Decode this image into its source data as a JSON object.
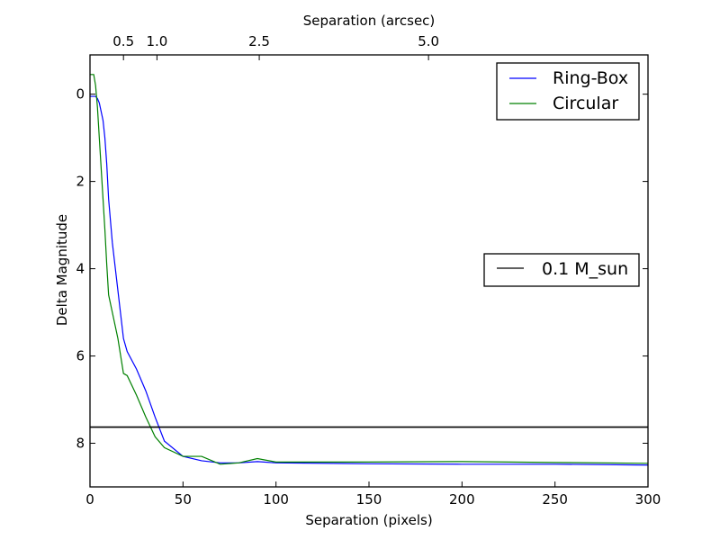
{
  "chart_data": {
    "type": "line",
    "xlabel": "Separation (pixels)",
    "ylabel": "Delta Magnitude",
    "top_xlabel": "Separation (arcsec)",
    "xlim": [
      0,
      300
    ],
    "ylim": [
      9,
      -0.9
    ],
    "y_inverted": true,
    "grid": false,
    "x_ticks": [
      0,
      50,
      100,
      150,
      200,
      250,
      300
    ],
    "y_ticks": [
      0,
      2,
      4,
      6,
      8
    ],
    "top_ticks": [
      {
        "label": "0.5",
        "x": 18
      },
      {
        "label": "1.0",
        "x": 36
      },
      {
        "label": "2.5",
        "x": 91
      },
      {
        "label": "5.0",
        "x": 182
      }
    ],
    "series": [
      {
        "name": "Ring-Box",
        "color": "#0000ff",
        "x": [
          0,
          2,
          3,
          4,
          5,
          6,
          7,
          8,
          9,
          10,
          12,
          15,
          18,
          20,
          25,
          30,
          35,
          40,
          50,
          60,
          70,
          80,
          90,
          100,
          150,
          200,
          250,
          300
        ],
        "y": [
          0.05,
          0.05,
          0.05,
          0.1,
          0.2,
          0.4,
          0.6,
          1.0,
          1.6,
          2.4,
          3.4,
          4.5,
          5.6,
          5.9,
          6.3,
          6.8,
          7.4,
          7.95,
          8.3,
          8.4,
          8.45,
          8.45,
          8.42,
          8.45,
          8.47,
          8.48,
          8.48,
          8.5
        ]
      },
      {
        "name": "Circular",
        "color": "#008000",
        "x": [
          0,
          2,
          3,
          4,
          5,
          6,
          7,
          8,
          9,
          10,
          12,
          15,
          18,
          20,
          25,
          30,
          35,
          40,
          50,
          60,
          70,
          80,
          90,
          100,
          150,
          200,
          250,
          300
        ],
        "y": [
          -0.45,
          -0.45,
          -0.2,
          0.3,
          1.0,
          1.7,
          2.4,
          3.1,
          3.9,
          4.6,
          5.0,
          5.6,
          6.4,
          6.45,
          6.9,
          7.4,
          7.85,
          8.1,
          8.3,
          8.3,
          8.48,
          8.45,
          8.35,
          8.43,
          8.43,
          8.42,
          8.44,
          8.46
        ]
      },
      {
        "name": "0.1 M_sun",
        "color": "#000000",
        "x": [
          0,
          300
        ],
        "y": [
          7.63,
          7.63
        ]
      }
    ]
  }
}
